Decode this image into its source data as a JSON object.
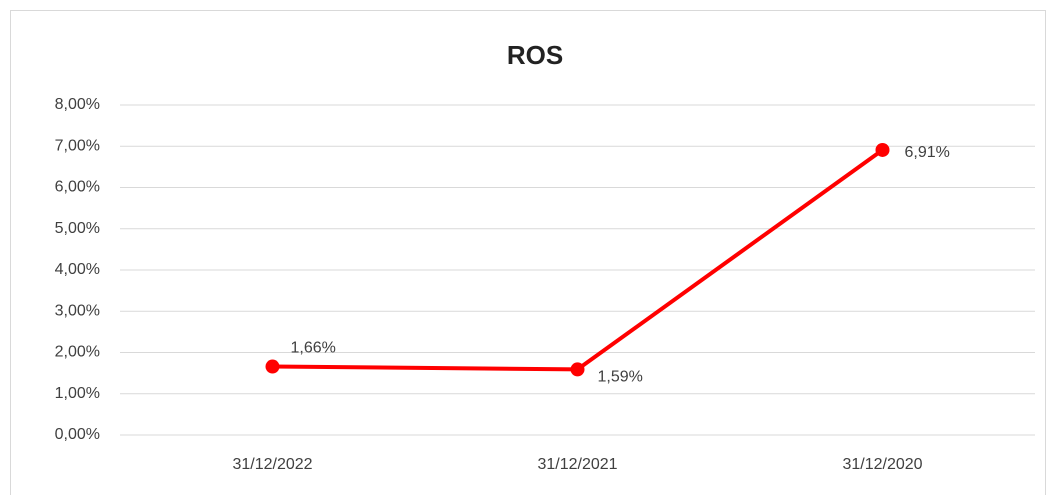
{
  "chart_data": {
    "type": "line",
    "title": "ROS",
    "categories": [
      "31/12/2022",
      "31/12/2021",
      "31/12/2020"
    ],
    "values": [
      1.66,
      1.59,
      6.91
    ],
    "value_labels": [
      "1,66%",
      "1,59%",
      "6,91%"
    ],
    "color": "#ff0000",
    "ylim": [
      0,
      8
    ],
    "yticks": [
      {
        "value": 0,
        "label": "0,00%"
      },
      {
        "value": 1,
        "label": "1,00%"
      },
      {
        "value": 2,
        "label": "2,00%"
      },
      {
        "value": 3,
        "label": "3,00%"
      },
      {
        "value": 4,
        "label": "4,00%"
      },
      {
        "value": 5,
        "label": "5,00%"
      },
      {
        "value": 6,
        "label": "6,00%"
      },
      {
        "value": 7,
        "label": "7,00%"
      },
      {
        "value": 8,
        "label": "8,00%"
      }
    ],
    "grid": true
  }
}
